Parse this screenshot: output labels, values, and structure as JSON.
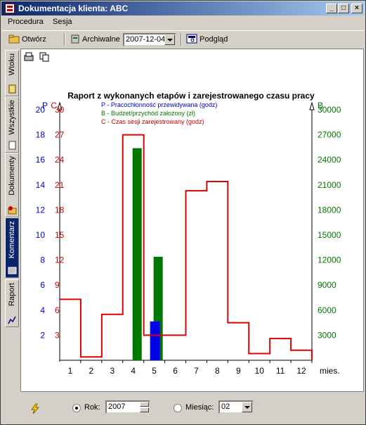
{
  "window": {
    "title": "Dokumentacja klienta: ABC",
    "min": "_",
    "max": "□",
    "close": "×"
  },
  "menu": {
    "items": [
      "Procedura",
      "Sesja"
    ]
  },
  "toolbar": {
    "open_label": "Otwórz",
    "archive_label": "Archiwalne",
    "date_value": "2007-12-04",
    "preview_label": "Podgląd"
  },
  "tabs": [
    {
      "label": "Wtoku",
      "icon": "document-icon"
    },
    {
      "label": "Wszystkie",
      "icon": "document-icon"
    },
    {
      "label": "Dokumenty",
      "icon": "documents-icon"
    },
    {
      "label": "Komentarz",
      "icon": "comment-icon",
      "active": true
    },
    {
      "label": "Raport",
      "icon": "chart-icon"
    }
  ],
  "chart_data": {
    "type": "bar",
    "title": "Raport z wykonanych etapów i zarejestrowanego czasu pracy",
    "legend": [
      {
        "text": "P - Pracochłonność przewidywana (godz)",
        "color": "#0000cc"
      },
      {
        "text": "B - Budżet/przychód założony (zł)",
        "color": "#007700"
      },
      {
        "text": "C - Czas sesji zarejestrowany (godz)",
        "color": "#cc0000"
      }
    ],
    "axis_p": {
      "label": "P",
      "ticks": [
        2,
        4,
        6,
        8,
        10,
        12,
        14,
        16,
        18,
        20
      ],
      "ylim": [
        0,
        20
      ],
      "color": "#0000cc"
    },
    "axis_c": {
      "label": "C",
      "ticks": [
        3,
        6,
        9,
        12,
        15,
        18,
        21,
        24,
        27,
        30
      ],
      "ylim": [
        0,
        30
      ],
      "color": "#cc0000"
    },
    "axis_b": {
      "label": "B",
      "ticks": [
        3000,
        6000,
        9000,
        12000,
        15000,
        18000,
        21000,
        24000,
        27000,
        30000
      ],
      "ylim": [
        0,
        30000
      ],
      "color": "#007700"
    },
    "categories": [
      "1",
      "2",
      "3",
      "4",
      "5",
      "6",
      "7",
      "8",
      "9",
      "10",
      "11",
      "12"
    ],
    "x_unit": "mies.",
    "series": [
      {
        "name": "P",
        "values": [
          0,
          0,
          0,
          0,
          3.1,
          0,
          0,
          0,
          0,
          0,
          0,
          0
        ],
        "color": "#0000ee"
      },
      {
        "name": "B",
        "values": [
          0,
          0,
          0,
          25400,
          12400,
          0,
          0,
          0,
          0,
          0,
          0,
          0
        ],
        "color": "#007700"
      },
      {
        "name": "C",
        "values": [
          7.3,
          0.4,
          5.5,
          27.0,
          3.0,
          3.0,
          20.3,
          21.4,
          4.5,
          0.8,
          2.6,
          1.2
        ],
        "color": "#dd0000"
      }
    ]
  },
  "footer": {
    "rok_label": "Rok:",
    "rok_value": "2007",
    "miesiac_label": "Miesiąc:",
    "miesiac_value": "02"
  }
}
